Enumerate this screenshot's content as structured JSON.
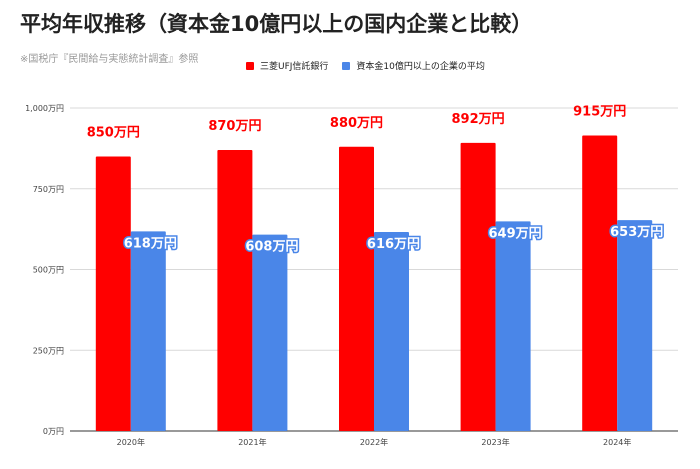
{
  "title": "平均年収推移（資本金10億円以上の国内企業と比較）",
  "source": "※国税庁『民間給与実態統計調査』参照",
  "chart_data": {
    "type": "bar",
    "categories": [
      "2020年",
      "2021年",
      "2022年",
      "2023年",
      "2024年"
    ],
    "series": [
      {
        "name": "三菱UFJ信託銀行",
        "values": [
          850,
          870,
          880,
          892,
          915
        ],
        "color": "#ff0000",
        "labels": [
          "850万円",
          "870万円",
          "880万円",
          "892万円",
          "915万円"
        ]
      },
      {
        "name": "資本金10億円以上の企業の平均",
        "values": [
          618,
          608,
          616,
          649,
          653
        ],
        "color": "#4a86e8",
        "labels": [
          "618万円",
          "608万円",
          "616万円",
          "649万円",
          "653万円"
        ]
      }
    ],
    "yticks": [
      0,
      250,
      500,
      750,
      1000
    ],
    "ytick_labels": [
      "0万円",
      "250万円",
      "500万円",
      "750万円",
      "1,000万円"
    ],
    "ylim": [
      0,
      1000
    ],
    "grid": true,
    "legend_position": "top"
  }
}
